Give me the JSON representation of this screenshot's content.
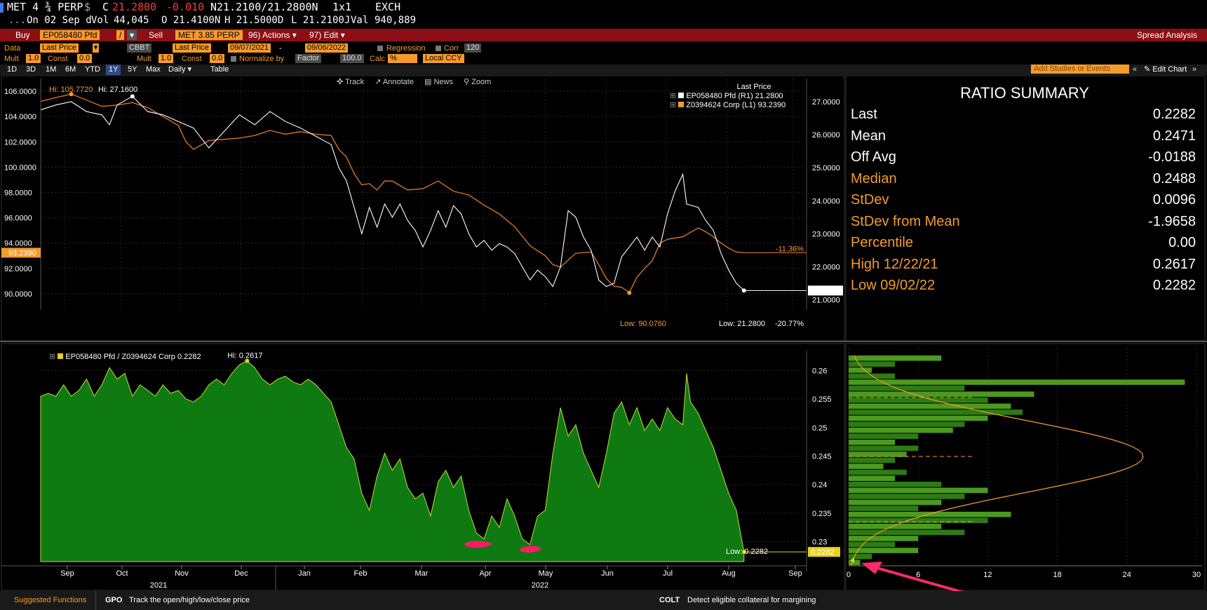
{
  "ticker": {
    "name": "MET 4 ¾ PERP",
    "currency_icon": "$",
    "change_flag": "C",
    "last": "21.2800",
    "change": "-0.010",
    "bid_ask": "N21.2100/21.2800N",
    "size": "1x1",
    "exch": "EXCH"
  },
  "quote_line": {
    "date": "On 02 Sep d",
    "vol_label": "Vol",
    "vol": "44,045",
    "open": "O 21.4100N",
    "high": "H 21.5000D",
    "low": "L 21.2100J",
    "val_label": "Val",
    "val": "940,889"
  },
  "toolbar": {
    "buy_label": "Buy",
    "buy_security": "EP058480 Pfd",
    "op": "/",
    "sell_label": "Sell",
    "sell_security": "MET 3.85 PERP",
    "actions": "96) Actions ▾",
    "edit": "97) Edit ▾",
    "title": "Spread Analysis"
  },
  "settings1": {
    "data_label": "Data",
    "data_value": "Last Price",
    "source": "CBBT",
    "field2": "Last Price",
    "start_date": "09/07/2021",
    "dash": "-",
    "end_date": "09/06/2022",
    "regression": "Regression",
    "corr_label": "Corr",
    "corr_value": "120"
  },
  "settings2": {
    "mult_label": "Mult",
    "mult_value": "1.0",
    "const_label": "Const",
    "const_value": "0.0",
    "mult2_label": "Mult",
    "mult2_value": "1.0",
    "const2_label": "Const",
    "const2_value": "0.0",
    "normalize_label": "Normalize by",
    "normalize_value": "Factor",
    "factor_value": "100.0",
    "calc_label": "Calc",
    "calc_value": "%",
    "ccy_value": "Local CCY"
  },
  "ranges": {
    "items": [
      "1D",
      "3D",
      "1M",
      "6M",
      "YTD",
      "1Y",
      "5Y",
      "Max"
    ],
    "selected": "1Y",
    "freq": "Daily ▾",
    "table": "Table",
    "add_studies": "Add Studies or Events",
    "edit_chart": "Edit Chart"
  },
  "upper_chart": {
    "tools": [
      "Track",
      "Annotate",
      "News",
      "Zoom"
    ],
    "legend_title": "Last Price",
    "legend": [
      {
        "name": "EP058480 Pfd  (R1)  21.2800",
        "color": "#ffffff"
      },
      {
        "name": "Z0394624 Corp  (L1)  93.2390",
        "color": "#f59b2b"
      }
    ],
    "left_ticks": [
      "106.0000",
      "104.0000",
      "102.0000",
      "100.0000",
      "98.0000",
      "96.0000",
      "94.0000",
      "92.0000",
      "90.0000"
    ],
    "right_ticks": [
      "27.0000",
      "26.0000",
      "25.0000",
      "24.0000",
      "23.0000",
      "22.0000",
      "21.0000"
    ],
    "left_last": "93.2390",
    "right_last": "21.2800",
    "hi_left": "Hi: 105.7720",
    "hi_right": "Hi: 27.1600",
    "low_left": "Low: 90.0760",
    "low_right": "Low: 21.2800",
    "pct_left": "-11.36%",
    "pct_right": "-20.77%"
  },
  "lower_chart": {
    "legend": "EP058480 Pfd / Z0394624 Corp 0.2282",
    "hi_label": "Hi: 0.2617",
    "low_label": "Low: 0.2282",
    "last_label": "0.2282",
    "right_ticks": [
      "0.26",
      "0.255",
      "0.25",
      "0.245",
      "0.24",
      "0.235",
      "0.23"
    ],
    "months": [
      "Sep",
      "Oct",
      "Nov",
      "Dec",
      "Jan",
      "Feb",
      "Mar",
      "Apr",
      "May",
      "Jun",
      "Jul",
      "Aug",
      "Sep"
    ],
    "years": [
      "2021",
      "2022"
    ]
  },
  "histogram": {
    "x_ticks": [
      "0",
      "6",
      "12",
      "18",
      "24",
      "30"
    ]
  },
  "ratio_summary": {
    "title": "RATIO SUMMARY",
    "rows": [
      {
        "label": "Last",
        "value": "0.2282",
        "color": "#ffffff"
      },
      {
        "label": "Mean",
        "value": "0.2471",
        "color": "#ffffff"
      },
      {
        "label": "Off Avg",
        "value": "-0.0188",
        "color": "#ffffff"
      },
      {
        "label": "Median",
        "value": "0.2488",
        "color": "#f59b2b"
      },
      {
        "label": "StDev",
        "value": "0.0096",
        "color": "#f59b2b"
      },
      {
        "label": "StDev from Mean",
        "value": "-1.9658",
        "color": "#f59b2b"
      },
      {
        "label": "Percentile",
        "value": "0.00",
        "color": "#f59b2b"
      },
      {
        "label": "High 12/22/21",
        "value": "0.2617",
        "color": "#f59b2b"
      },
      {
        "label": "Low 09/02/22",
        "value": "0.2282",
        "color": "#f59b2b"
      }
    ]
  },
  "footer": {
    "suggested": "Suggested Functions",
    "f1_code": "GPO",
    "f1_desc": "Track the open/high/low/close price",
    "f2_code": "COLT",
    "f2_desc": "Detect eligible collateral for margining"
  },
  "chart_data": [
    {
      "type": "line",
      "title": "",
      "series": [
        {
          "name": "EP058480 Pfd (R1)",
          "axis": "right",
          "x": [
            "2021-09",
            "2021-10",
            "2021-11",
            "2021-12",
            "2022-01",
            "2022-02",
            "2022-03",
            "2022-04",
            "2022-05",
            "2022-06",
            "2022-07",
            "2022-08",
            "2022-09"
          ],
          "values": [
            26.7,
            26.9,
            26.3,
            26.6,
            25.9,
            23.2,
            23.5,
            22.8,
            21.6,
            22.1,
            23.6,
            22.3,
            21.28
          ]
        },
        {
          "name": "Z0394624 Corp (L1)",
          "axis": "left",
          "x": [
            "2021-09",
            "2021-10",
            "2021-11",
            "2021-12",
            "2022-01",
            "2022-02",
            "2022-03",
            "2022-04",
            "2022-05",
            "2022-06",
            "2022-07",
            "2022-08",
            "2022-09"
          ],
          "values": [
            105.2,
            105.0,
            102.5,
            103.0,
            102.6,
            98.7,
            98.5,
            96.5,
            94.0,
            92.5,
            90.5,
            95.0,
            93.24
          ]
        }
      ],
      "ylim_left": [
        89,
        107
      ],
      "ylim_right": [
        20.8,
        27.7
      ]
    },
    {
      "type": "area",
      "title": "",
      "series": [
        {
          "name": "EP058480 Pfd / Z0394624 Corp",
          "x": [
            "2021-09",
            "2021-10",
            "2021-11",
            "2021-12",
            "2022-01",
            "2022-02",
            "2022-03",
            "2022-04",
            "2022-05",
            "2022-06",
            "2022-07",
            "2022-08",
            "2022-09"
          ],
          "values": [
            0.2555,
            0.259,
            0.2575,
            0.2605,
            0.255,
            0.2375,
            0.2375,
            0.2305,
            0.2315,
            0.249,
            0.251,
            0.2505,
            0.2282
          ]
        }
      ],
      "ylim": [
        0.2265,
        0.2635
      ]
    },
    {
      "type": "bar",
      "title": "",
      "orientation": "horizontal",
      "categories": [
        "0.2625",
        "0.2615",
        "0.2605",
        "0.2595",
        "0.2585",
        "0.2575",
        "0.2565",
        "0.2555",
        "0.2545",
        "0.2535",
        "0.2525",
        "0.2515",
        "0.2505",
        "0.2495",
        "0.2485",
        "0.2475",
        "0.2465",
        "0.2455",
        "0.2445",
        "0.2435",
        "0.2425",
        "0.2415",
        "0.2405",
        "0.2395",
        "0.2385",
        "0.2375",
        "0.2365",
        "0.2355",
        "0.2345",
        "0.2335",
        "0.2325",
        "0.2315",
        "0.2305",
        "0.2295",
        "0.2285"
      ],
      "values": [
        8,
        4,
        2,
        4,
        29,
        10,
        16,
        12,
        14,
        15,
        12,
        10,
        9,
        6,
        4,
        6,
        5,
        4,
        3,
        5,
        4,
        8,
        12,
        10,
        8,
        6,
        14,
        12,
        8,
        10,
        6,
        4,
        6,
        2,
        1
      ],
      "xlim": [
        0,
        30
      ]
    }
  ]
}
